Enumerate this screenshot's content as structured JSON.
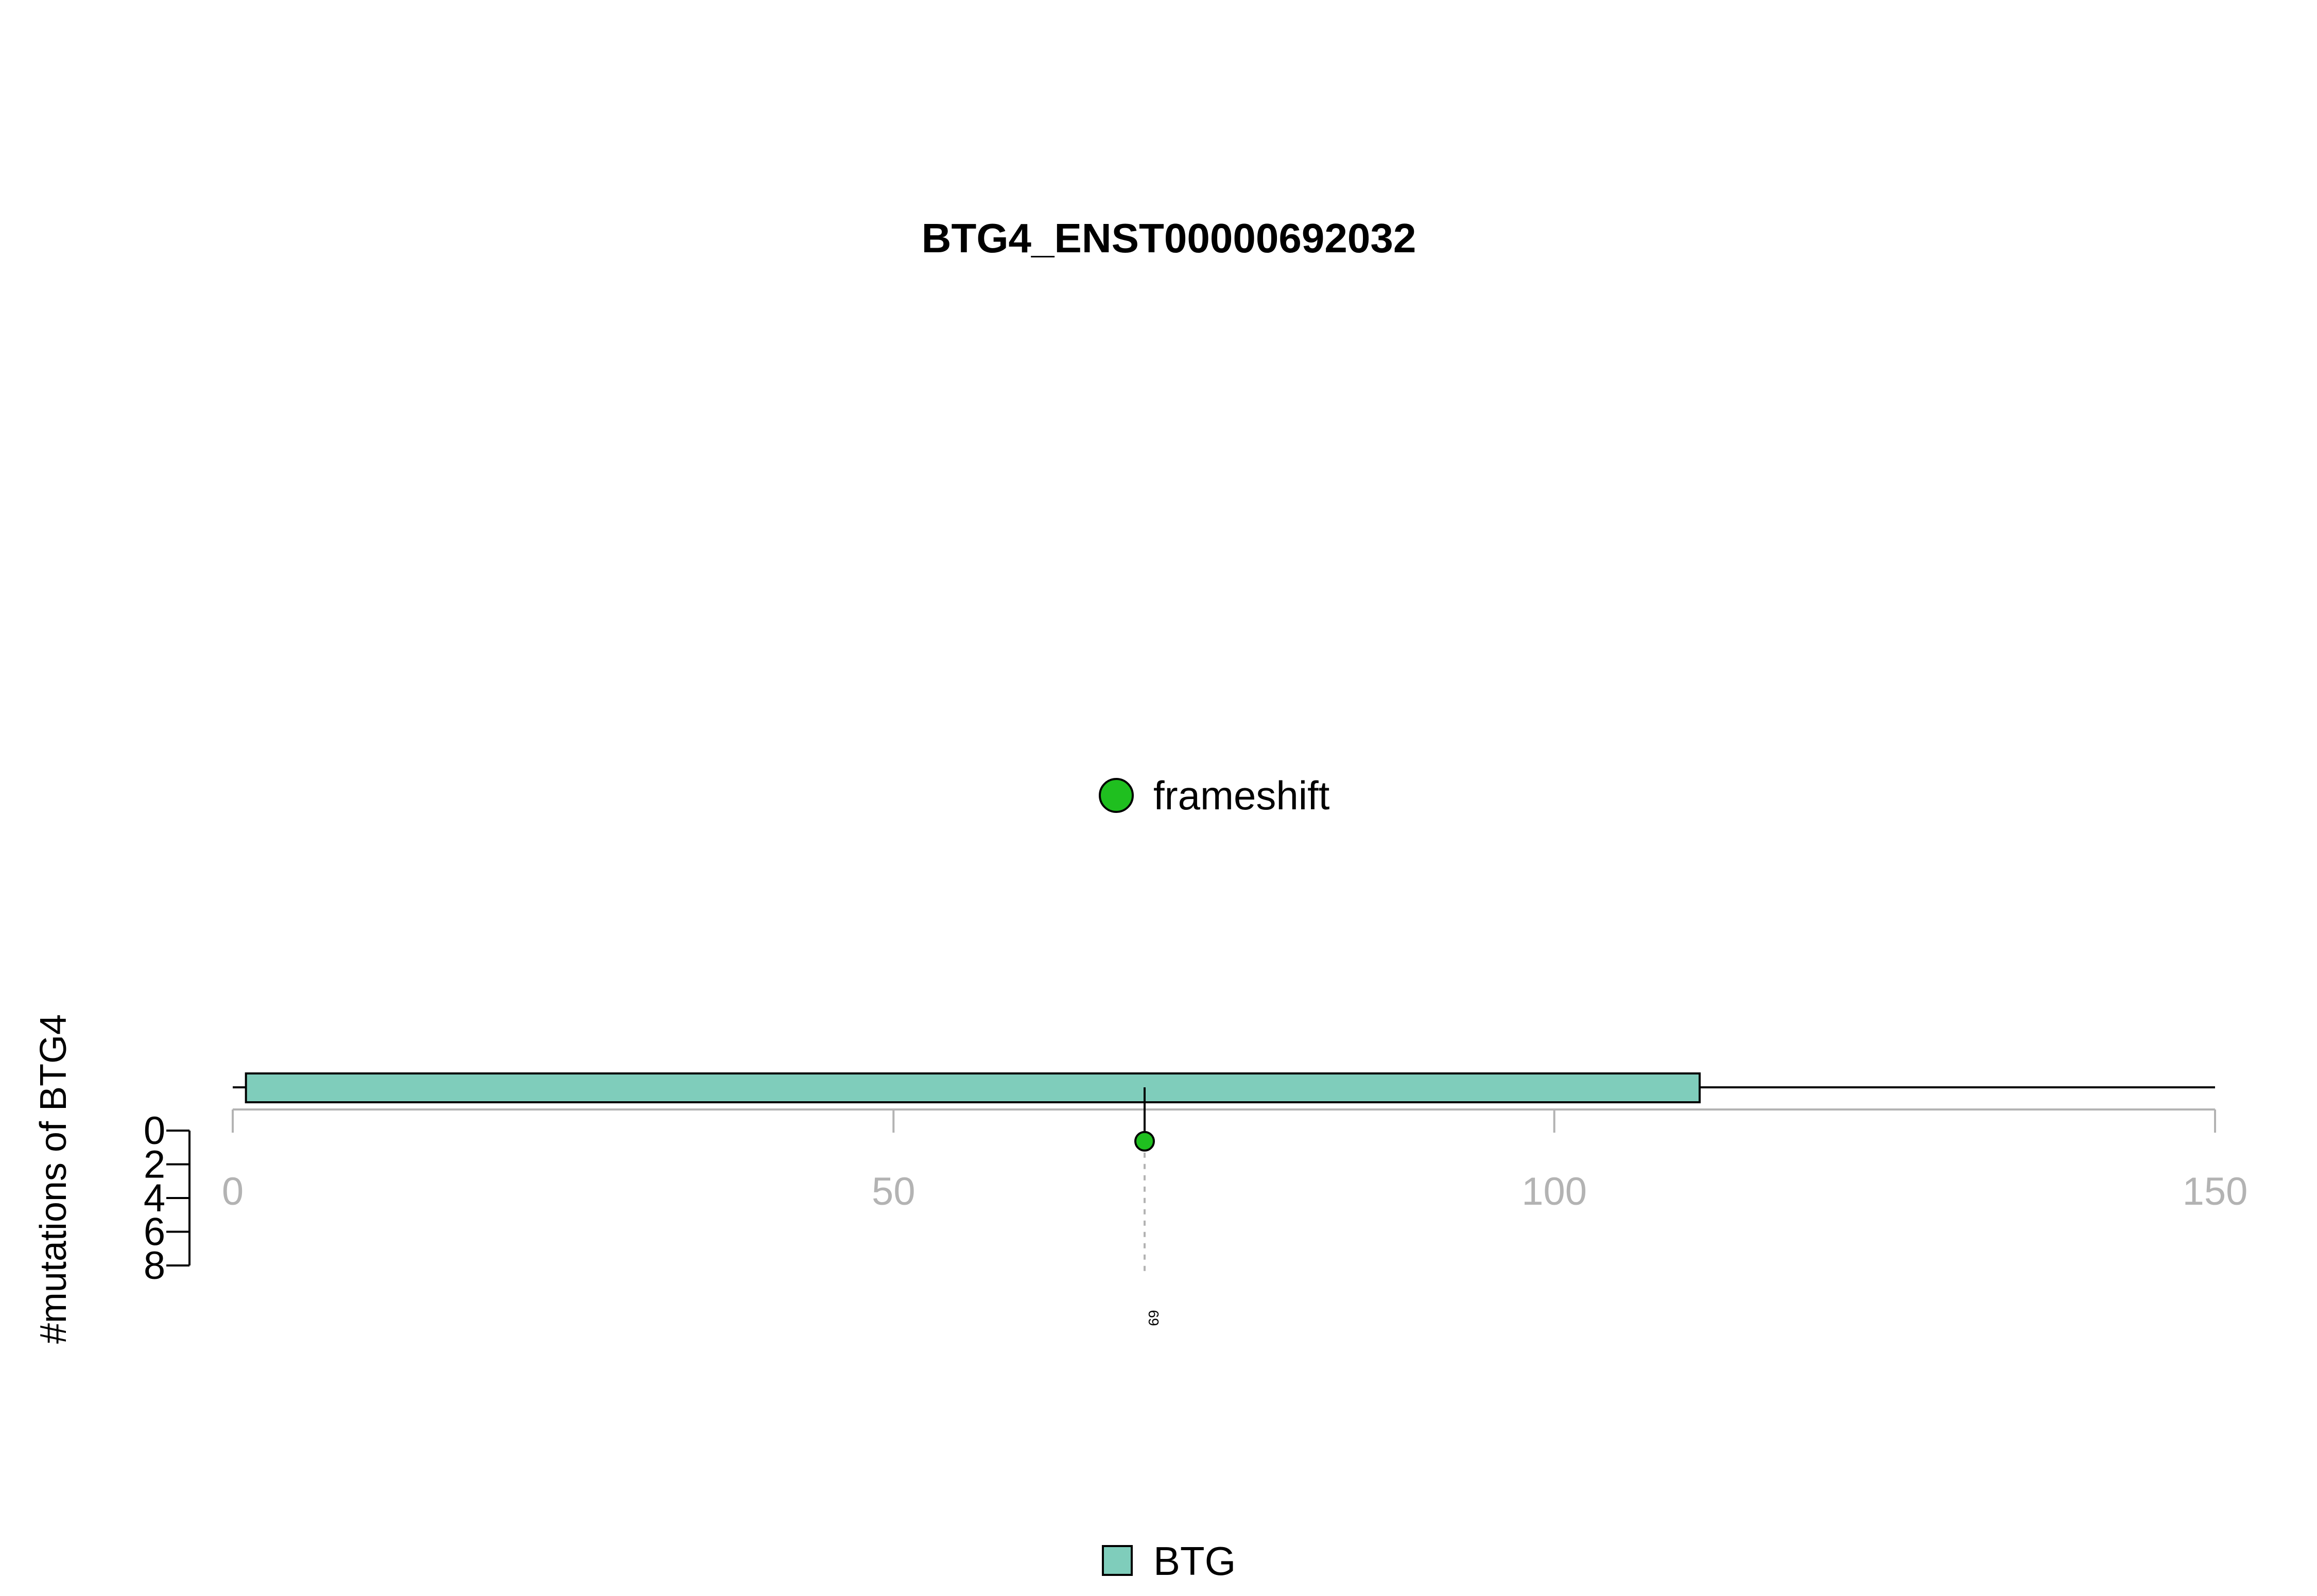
{
  "chart_data": {
    "type": "lollipop",
    "title": "BTG4_ENST00000692032",
    "ylabel": "#mutations of BTG4",
    "xlim": [
      0,
      150
    ],
    "x_ticks": [
      0,
      50,
      100,
      150
    ],
    "y_ticks": [
      0,
      2,
      4,
      6,
      8
    ],
    "ylim": [
      0,
      8
    ],
    "protein_length": 150,
    "domains": [
      {
        "name": "BTG",
        "start": 1,
        "end": 111,
        "color": "#7fcdbb"
      }
    ],
    "mutations": [
      {
        "position": 69,
        "count": 1,
        "type": "frameshift",
        "label": "69",
        "color": "#1fbf1f"
      }
    ],
    "mutation_legend": [
      {
        "label": "frameshift",
        "color": "#1fbf1f"
      }
    ],
    "domain_legend": [
      {
        "label": "BTG",
        "color": "#7fcdbb"
      }
    ]
  }
}
